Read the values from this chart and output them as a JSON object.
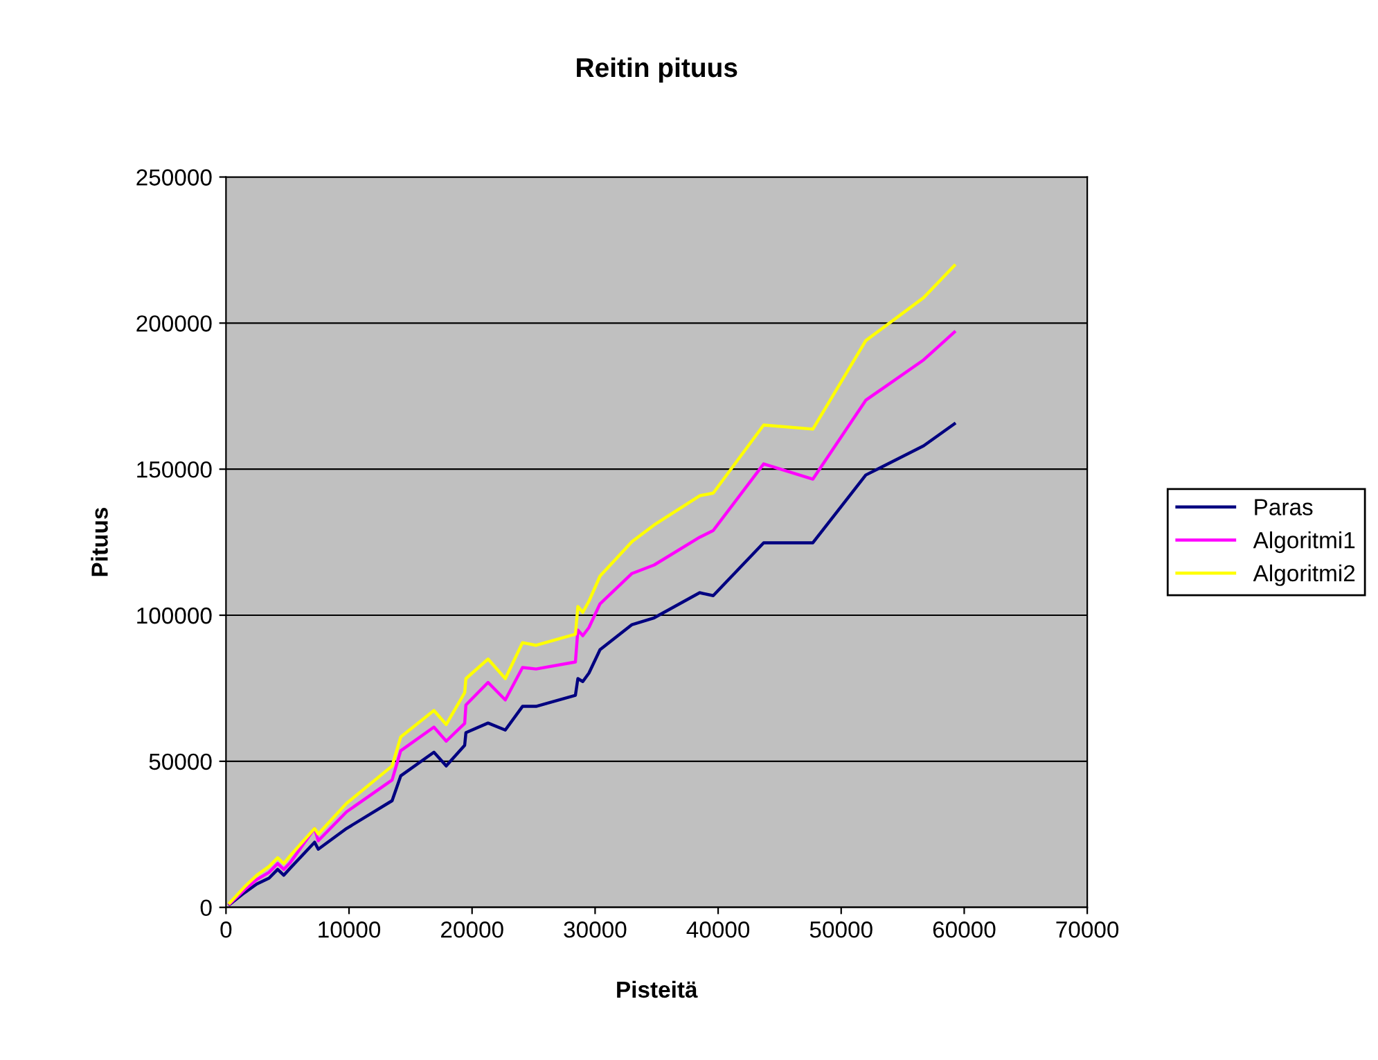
{
  "chart_data": {
    "type": "line",
    "title": "Reitin pituus",
    "xlabel": "Pisteitä",
    "ylabel": "Pituus",
    "x": [
      300,
      1500,
      2500,
      3500,
      4200,
      4700,
      5200,
      7200,
      7500,
      9800,
      13500,
      14200,
      16900,
      17900,
      19400,
      19500,
      21300,
      22700,
      24100,
      25200,
      28400,
      28600,
      29000,
      29500,
      30400,
      33000,
      34800,
      38500,
      39600,
      43700,
      47700,
      52000,
      56700,
      59200
    ],
    "series": [
      {
        "name": "Paras",
        "color": "#000080",
        "values": [
          1000,
          5000,
          8000,
          10000,
          13000,
          11000,
          13300,
          22300,
          19900,
          27000,
          36500,
          45000,
          53100,
          48400,
          55500,
          59800,
          63100,
          60700,
          68800,
          68800,
          72600,
          78300,
          77300,
          80200,
          88200,
          96800,
          99100,
          107700,
          106700,
          124800,
          124800,
          148000,
          158000,
          165500
        ]
      },
      {
        "name": "Algoritmi1",
        "color": "#ff00ff",
        "values": [
          1200,
          6000,
          9500,
          12000,
          15000,
          13000,
          15200,
          27000,
          22800,
          32700,
          43600,
          53600,
          61700,
          56900,
          63000,
          69300,
          77000,
          71000,
          82100,
          81600,
          84000,
          94900,
          93000,
          95800,
          103900,
          114300,
          117200,
          126700,
          129000,
          151800,
          146600,
          173600,
          187400,
          196900
        ]
      },
      {
        "name": "Algoritmi2",
        "color": "#ffff00",
        "values": [
          1500,
          7000,
          11000,
          14000,
          17000,
          15000,
          17600,
          27000,
          25100,
          35600,
          48400,
          58300,
          67400,
          62600,
          73500,
          78300,
          85000,
          78300,
          90600,
          89700,
          93500,
          103000,
          101000,
          104800,
          113400,
          125200,
          130900,
          140900,
          141800,
          165100,
          163700,
          194000,
          208700,
          219700
        ]
      }
    ],
    "xlim": [
      0,
      70000
    ],
    "xticks": [
      0,
      10000,
      20000,
      30000,
      40000,
      50000,
      60000,
      70000
    ],
    "ylim": [
      0,
      250000
    ],
    "yticks": [
      0,
      50000,
      100000,
      150000,
      200000,
      250000
    ],
    "grid": "y",
    "legend": "right",
    "marker": "none",
    "line_style": "solid"
  }
}
